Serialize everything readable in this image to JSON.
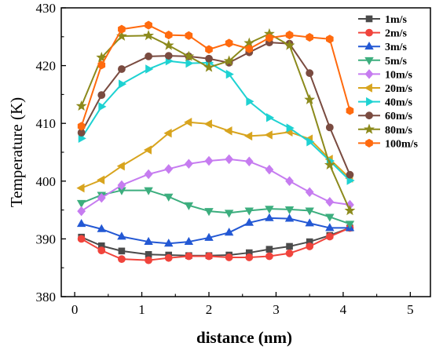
{
  "chart_data": {
    "type": "line",
    "xlabel": "distance (nm)",
    "ylabel": "Temperature (K)",
    "xlim": [
      -0.2,
      5.3
    ],
    "ylim": [
      380,
      430
    ],
    "x_ticks": [
      0,
      1,
      2,
      3,
      4,
      5
    ],
    "y_ticks": [
      380,
      390,
      400,
      410,
      420,
      430
    ],
    "grid": false,
    "legend_position": "top-right",
    "x": [
      0.1,
      0.4,
      0.7,
      1.1,
      1.4,
      1.7,
      2.0,
      2.3,
      2.6,
      2.9,
      3.2,
      3.5,
      3.8,
      4.1
    ],
    "series": [
      {
        "name": "1m/s",
        "color": "#4b4b4b",
        "marker": "square",
        "values": [
          390.3,
          388.8,
          387.9,
          387.3,
          387.2,
          387.1,
          387.1,
          387.2,
          387.6,
          388.2,
          388.7,
          389.5,
          390.6,
          391.9
        ]
      },
      {
        "name": "2m/s",
        "color": "#f0443c",
        "marker": "circle",
        "values": [
          390.0,
          388.0,
          386.5,
          386.3,
          386.7,
          387.0,
          387.0,
          386.8,
          386.8,
          387.0,
          387.5,
          388.7,
          390.4,
          391.9
        ]
      },
      {
        "name": "3m/s",
        "color": "#2358d4",
        "marker": "triangle-up",
        "values": [
          392.6,
          391.7,
          390.4,
          389.5,
          389.2,
          389.5,
          390.2,
          391.1,
          392.8,
          393.6,
          393.5,
          392.7,
          391.9,
          391.9
        ]
      },
      {
        "name": "5m/s",
        "color": "#3cae7e",
        "marker": "triangle-down",
        "values": [
          396.2,
          397.6,
          398.4,
          398.4,
          397.3,
          395.8,
          394.8,
          394.5,
          394.9,
          395.2,
          395.1,
          394.9,
          393.8,
          392.6
        ]
      },
      {
        "name": "10m/s",
        "color": "#c67cf0",
        "marker": "diamond",
        "values": [
          394.8,
          397.1,
          399.3,
          401.2,
          402.1,
          403.0,
          403.5,
          403.8,
          403.4,
          402.0,
          400.0,
          398.1,
          396.4,
          395.9
        ]
      },
      {
        "name": "20m/s",
        "color": "#d8a41e",
        "marker": "triangle-left",
        "values": [
          398.8,
          400.2,
          402.6,
          405.4,
          408.3,
          410.2,
          409.9,
          408.7,
          407.8,
          408.0,
          408.5,
          407.3,
          403.8,
          400.5
        ]
      },
      {
        "name": "40m/s",
        "color": "#1ed2d2",
        "marker": "triangle-right",
        "values": [
          407.4,
          412.9,
          416.8,
          419.4,
          420.8,
          420.4,
          420.5,
          418.5,
          413.8,
          411.0,
          409.2,
          406.8,
          403.5,
          400.1
        ]
      },
      {
        "name": "60m/s",
        "color": "#7a4b40",
        "marker": "circle",
        "values": [
          408.4,
          414.9,
          419.4,
          421.6,
          421.7,
          421.6,
          421.2,
          420.5,
          422.3,
          424.0,
          423.8,
          418.7,
          409.3,
          401.1
        ]
      },
      {
        "name": "80m/s",
        "color": "#8c8a1c",
        "marker": "star",
        "values": [
          413.0,
          421.4,
          425.1,
          425.2,
          423.5,
          421.6,
          419.7,
          420.8,
          423.9,
          425.5,
          423.5,
          414.1,
          402.8,
          394.9
        ]
      },
      {
        "name": "100m/s",
        "color": "#ff6a0e",
        "marker": "hexagon",
        "values": [
          409.5,
          420.1,
          426.3,
          427.0,
          425.3,
          425.2,
          422.8,
          423.9,
          422.9,
          424.8,
          425.3,
          424.9,
          424.6,
          412.2
        ]
      }
    ]
  }
}
